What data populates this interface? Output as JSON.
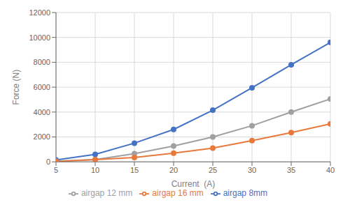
{
  "chart_data": {
    "type": "line",
    "x": [
      5,
      10,
      15,
      20,
      25,
      30,
      35,
      40
    ],
    "series": [
      {
        "name": "airgap 8mm",
        "color": "#4472C4",
        "values": [
          150,
          600,
          1500,
          2600,
          4150,
          5950,
          7800,
          9600
        ]
      },
      {
        "name": "airgap 12 mm",
        "color": "#A0A0A0",
        "values": [
          50,
          175,
          650,
          1275,
          2000,
          2900,
          4000,
          5050
        ]
      },
      {
        "name": "airgap 16 mm",
        "color": "#E8793A",
        "values": [
          30,
          175,
          350,
          700,
          1100,
          1700,
          2350,
          3050
        ]
      }
    ],
    "xlabel": "Current  (A)",
    "ylabel": "Force (N)",
    "xlim": [
      5,
      40
    ],
    "ylim": [
      0,
      12000
    ],
    "xticks": [
      5,
      10,
      15,
      20,
      25,
      30,
      35,
      40
    ],
    "yticks": [
      0,
      2000,
      4000,
      6000,
      8000,
      10000,
      12000
    ],
    "grid": true,
    "legend": "bottom",
    "marker": "circle"
  }
}
